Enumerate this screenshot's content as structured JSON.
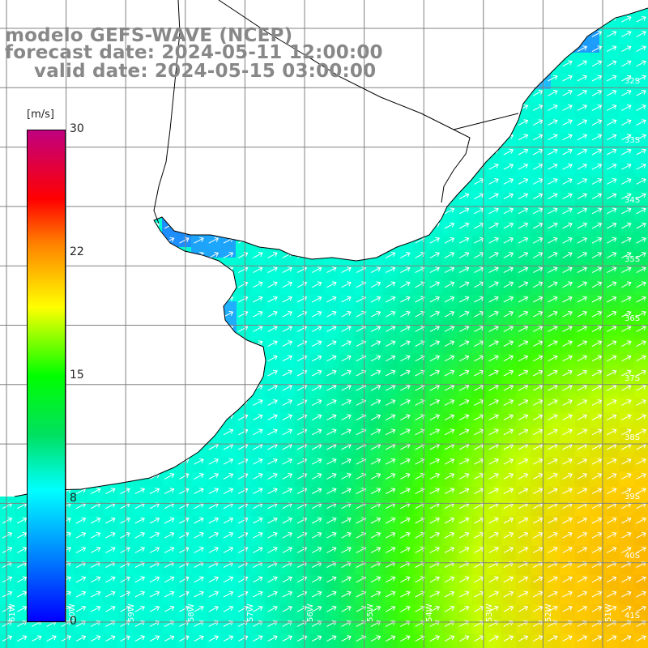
{
  "titles": {
    "line1": "modelo GEFS-WAVE (NCEP)",
    "line2": "forecast date: 2024-05-11 12:00:00",
    "line3": "valid date: 2024-05-15 03:00:00"
  },
  "legend": {
    "unit": "[m/s]",
    "ticks": [
      "30",
      "22",
      "15",
      "8",
      "0"
    ],
    "colors": [
      "#0000ff",
      "#0080ff",
      "#00ffff",
      "#00e060",
      "#00ff00",
      "#ffff00",
      "#ff8000",
      "#ff0000",
      "#c00080"
    ]
  },
  "lat_labels": [
    "32S",
    "33S",
    "34S",
    "35S",
    "36S",
    "37S",
    "38S",
    "39S",
    "40S",
    "41S"
  ],
  "lon_labels": [
    "61W",
    "60W",
    "59W",
    "58W",
    "57W",
    "56W",
    "55W",
    "54W",
    "53W",
    "52W",
    "51W"
  ],
  "colors": {
    "land": "#ffffff",
    "coast": "#000000",
    "grid": "#808080",
    "arrows": "#ffffff"
  }
}
